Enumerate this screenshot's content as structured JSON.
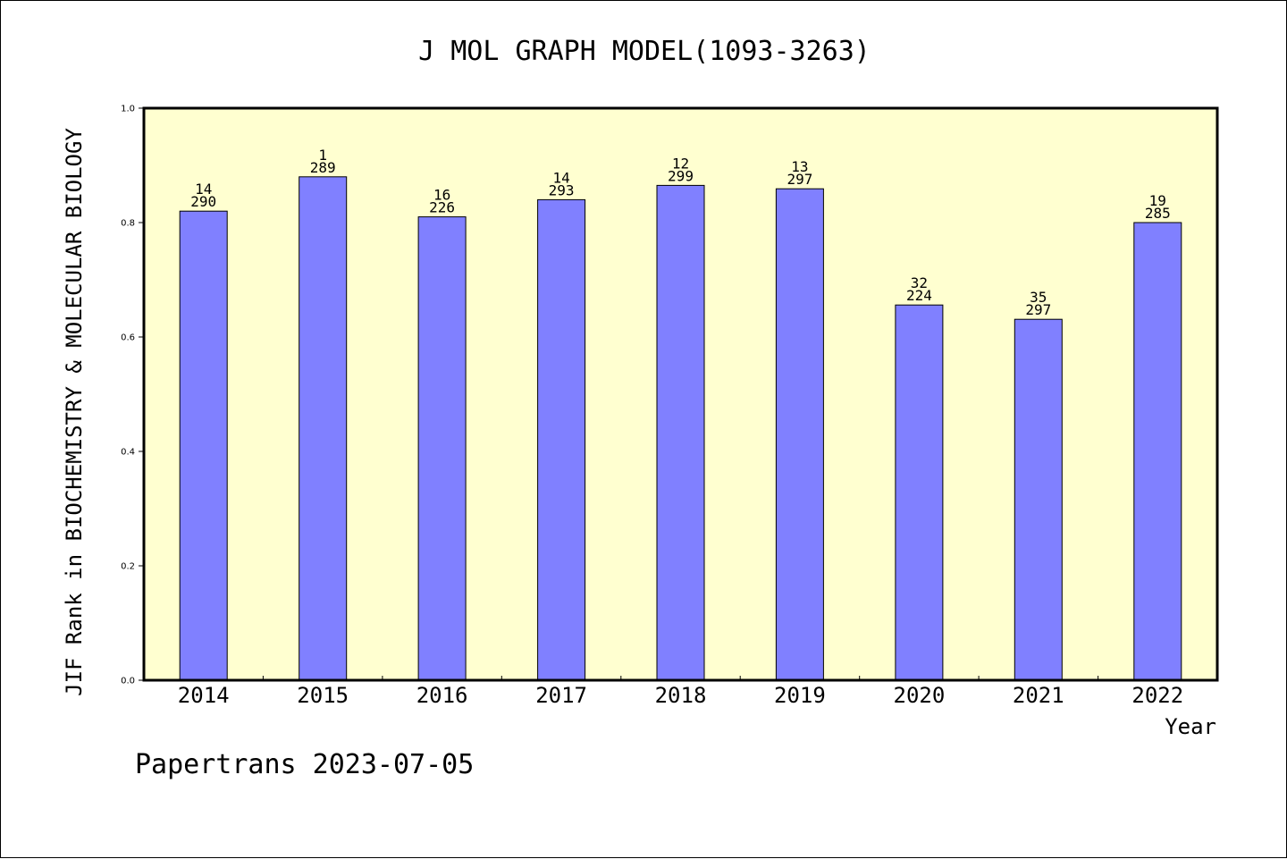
{
  "chart_data": {
    "type": "bar",
    "title": "J MOL GRAPH MODEL(1093-3263)",
    "xlabel": "Year",
    "ylabel": "JIF Rank in BIOCHEMISTRY & MOLECULAR BIOLOGY",
    "ylim": [
      0,
      1.0
    ],
    "yticks": [
      "0.0",
      "0.2",
      "0.4",
      "0.6",
      "0.8",
      "1.0"
    ],
    "categories": [
      "2014",
      "2015",
      "2016",
      "2017",
      "2018",
      "2019",
      "2020",
      "2021",
      "2022"
    ],
    "values": [
      0.82,
      0.88,
      0.81,
      0.84,
      0.865,
      0.859,
      0.656,
      0.631,
      0.8
    ],
    "rank": [
      "14",
      "1",
      "16",
      "14",
      "12",
      "13",
      "32",
      "35",
      "19"
    ],
    "total": [
      "290",
      "289",
      "226",
      "293",
      "299",
      "297",
      "224",
      "297",
      "285"
    ],
    "grid": false,
    "plot_background": "#ffffd0",
    "bar_color": "#8080ff"
  },
  "footer": "Papertrans 2023-07-05"
}
